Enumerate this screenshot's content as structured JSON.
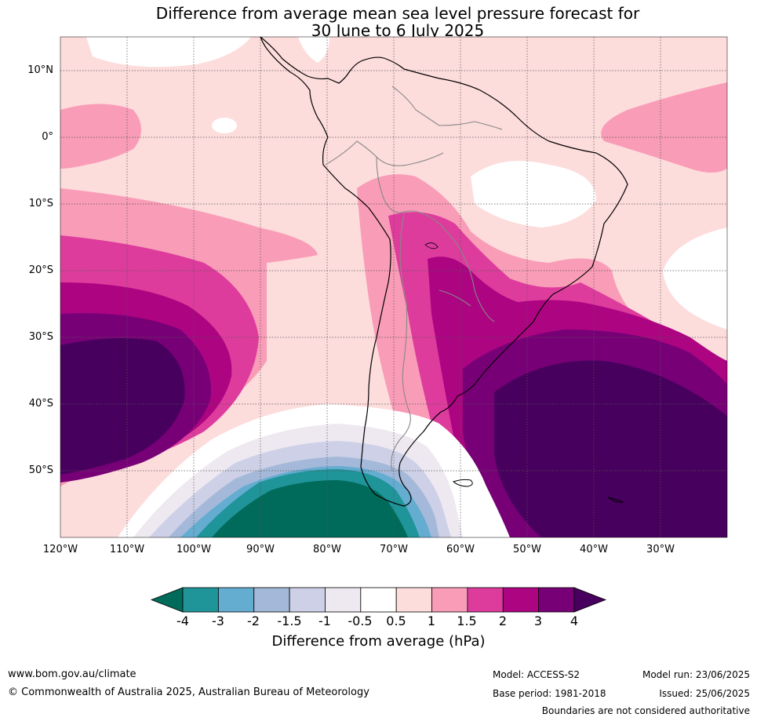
{
  "title_line1": "Difference from average mean sea level pressure forecast for",
  "title_line2": "30 June to 6 July 2025",
  "lat_labels": [
    "10°N",
    "0°",
    "10°S",
    "20°S",
    "30°S",
    "40°S",
    "50°S"
  ],
  "lon_labels": [
    "120°W",
    "110°W",
    "100°W",
    "90°W",
    "80°W",
    "70°W",
    "60°W",
    "50°W",
    "40°W",
    "30°W"
  ],
  "colorbar": {
    "ticks": [
      "-4",
      "-3",
      "-2",
      "-1.5",
      "-1",
      "-0.5",
      "0.5",
      "1",
      "1.5",
      "2",
      "3",
      "4"
    ],
    "colors": [
      "#006b5a",
      "#1f9499",
      "#65acd1",
      "#a4b9d9",
      "#cdd0e6",
      "#eee8f1",
      "#ffffff",
      "#fddcdc",
      "#f99cb7",
      "#dd3c9d",
      "#ad0482",
      "#780077",
      "#48005e"
    ],
    "label": "Difference from average (hPa)"
  },
  "footer": {
    "url": "www.bom.gov.au/climate",
    "copyright": "© Commonwealth of Australia 2025, Australian Bureau of Meteorology",
    "model": "Model: ACCESS-S2",
    "base_period": "Base period: 1981-2018",
    "model_run": "Model run: 23/06/2025",
    "issued": "Issued: 25/06/2025",
    "disclaimer": "Boundaries are not considered authoritative"
  }
}
